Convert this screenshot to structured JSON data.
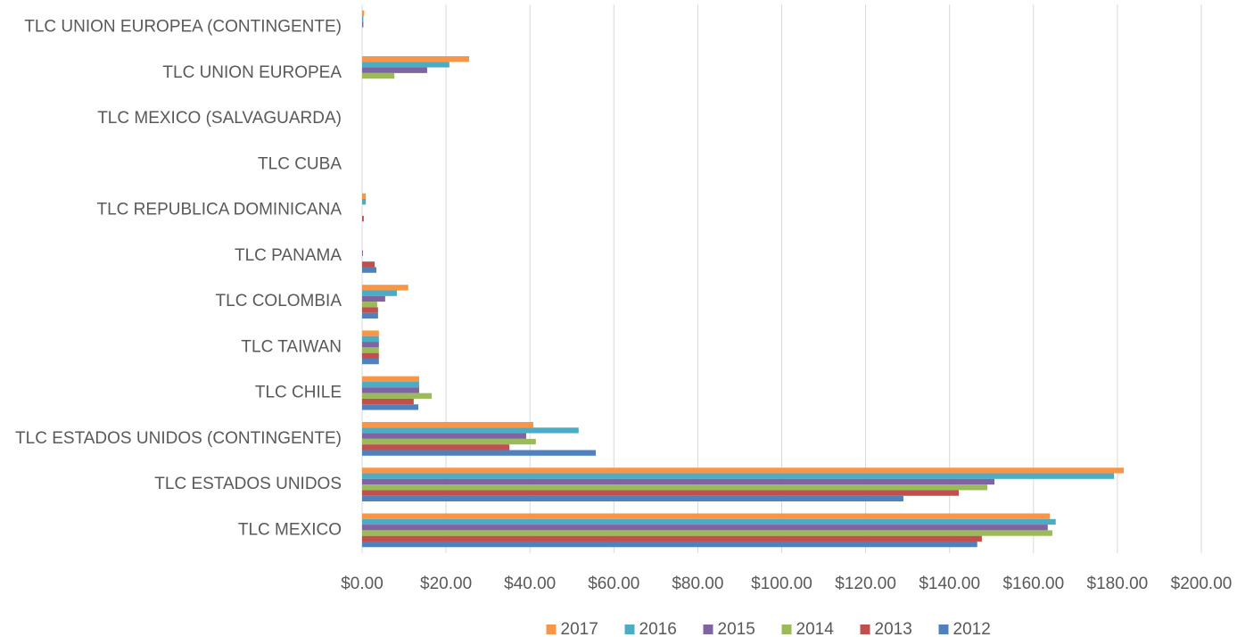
{
  "chart_data": {
    "type": "bar",
    "orientation": "horizontal",
    "categories": [
      "TLC MEXICO",
      "TLC ESTADOS UNIDOS",
      "TLC ESTADOS UNIDOS (CONTINGENTE)",
      "TLC CHILE",
      "TLC TAIWAN",
      "TLC COLOMBIA",
      "TLC PANAMA",
      "TLC REPUBLICA DOMINICANA",
      "TLC CUBA",
      "TLC MEXICO (SALVAGUARDA)",
      "TLC UNION EUROPEA",
      "TLC UNION EUROPEA (CONTINGENTE)"
    ],
    "series": [
      {
        "name": "2017",
        "color": "#f79646",
        "values": [
          163.9,
          181.5,
          40.8,
          13.6,
          4.0,
          11.0,
          0,
          0.9,
          0,
          0,
          25.5,
          0.5
        ]
      },
      {
        "name": "2016",
        "color": "#4bacc6",
        "values": [
          165.3,
          179.2,
          51.6,
          13.6,
          4.0,
          8.3,
          0,
          0.9,
          0,
          0,
          20.8,
          0.3
        ]
      },
      {
        "name": "2015",
        "color": "#8064a2",
        "values": [
          163.4,
          150.7,
          39.1,
          13.6,
          4.0,
          5.5,
          0.2,
          0,
          0,
          0,
          15.5,
          0.3
        ]
      },
      {
        "name": "2014",
        "color": "#9bbb59",
        "values": [
          164.5,
          149.0,
          41.4,
          16.6,
          4.0,
          3.6,
          0,
          0,
          0,
          0,
          7.7,
          0
        ]
      },
      {
        "name": "2013",
        "color": "#c0504d",
        "values": [
          147.7,
          142.2,
          35.1,
          12.3,
          4.0,
          3.8,
          3.0,
          0.4,
          0,
          0,
          0,
          0
        ]
      },
      {
        "name": "2012",
        "color": "#4f81bd",
        "values": [
          146.6,
          129.0,
          55.7,
          13.4,
          4.0,
          3.8,
          3.4,
          0,
          0,
          0,
          0,
          0
        ]
      }
    ],
    "xlim": [
      0,
      200
    ],
    "xticks": [
      {
        "value": 0,
        "label": "$0.00"
      },
      {
        "value": 20,
        "label": "$20.00"
      },
      {
        "value": 40,
        "label": "$40.00"
      },
      {
        "value": 60,
        "label": "$60.00"
      },
      {
        "value": 80,
        "label": "$80.00"
      },
      {
        "value": 100,
        "label": "$100.00"
      },
      {
        "value": 120,
        "label": "$120.00"
      },
      {
        "value": 140,
        "label": "$140.00"
      },
      {
        "value": 160,
        "label": "$160.00"
      },
      {
        "value": 180,
        "label": "$180.00"
      },
      {
        "value": 200,
        "label": "$200.00"
      }
    ],
    "grid": true,
    "legend": "bottom"
  }
}
